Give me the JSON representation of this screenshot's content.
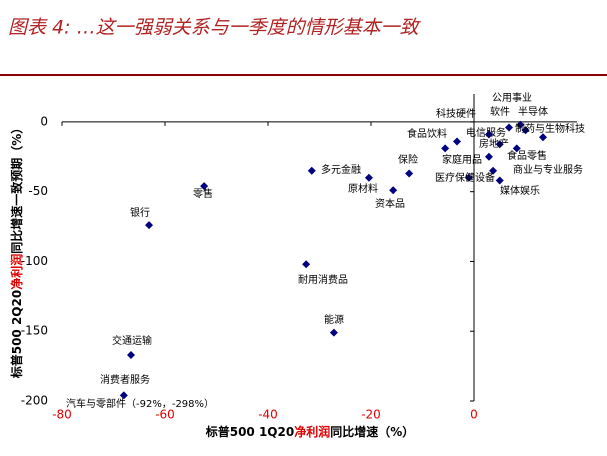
{
  "chart_data": {
    "type": "scatter",
    "title": "图表 4: …这一强弱关系与一季度的情形基本一致",
    "x_label_parts": [
      "标普500 1Q20",
      "净利润",
      "同比增速（%）"
    ],
    "y_label_parts": [
      "标普500 2Q20",
      "净利润",
      "同比增速一致预期（%）"
    ],
    "labels": [
      "消费者服务",
      "交通运输",
      "银行",
      "零售",
      "耐用消费品",
      "能源",
      "多元金融",
      "原材料",
      "资本品",
      "保险",
      "食品饮料",
      "科技硬件",
      "电信服务",
      "公用事业",
      "软件",
      "半导体",
      "制药与生物科技",
      "房地产",
      "食品零售",
      "家庭用品",
      "商业与专业服务",
      "医疗保健设备",
      "媒体娱乐"
    ],
    "x": [
      -68,
      -66.6,
      -63.1,
      -52.4,
      -32.6,
      -27.2,
      -31.5,
      -20.4,
      -15.7,
      -12.6,
      -5.6,
      -3.3,
      2.9,
      9,
      6.8,
      10,
      13.4,
      5,
      8.3,
      2.9,
      3.7,
      -1,
      5
    ],
    "values": [
      -196,
      -167,
      -74,
      -46,
      -102,
      -151,
      -35,
      -40,
      -49,
      -37,
      -19,
      -14,
      -9,
      -2,
      -4,
      -6,
      -11,
      -16,
      -19,
      -25,
      -35,
      -40,
      -42
    ],
    "annotation": "汽车与零部件（-92%，-298%）",
    "color": "#000080",
    "xlim": [
      -80,
      20
    ],
    "xticks": [
      -80,
      -60,
      -40,
      -20,
      0
    ],
    "ylim": [
      -200,
      20
    ],
    "yticks": [
      0,
      -50,
      -100,
      -150,
      -200
    ]
  }
}
